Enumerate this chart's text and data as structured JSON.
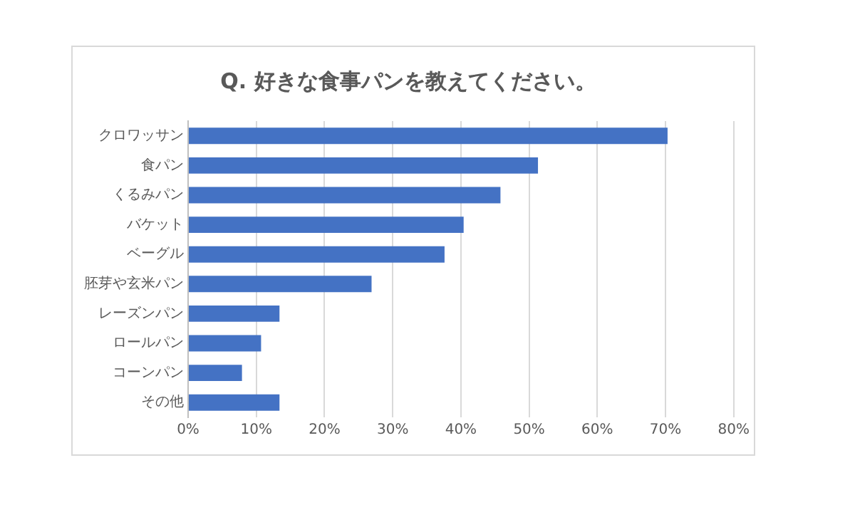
{
  "chart_data": {
    "type": "bar",
    "orientation": "horizontal",
    "title": "Q. 好きな食事パンを教えてください。",
    "categories": [
      "クロワッサン",
      "食パン",
      "くるみパン",
      "バケット",
      "ベーグル",
      "胚芽や玄米パン",
      "レーズンパン",
      "ロールパン",
      "コーンパン",
      "その他"
    ],
    "values": [
      70.3,
      51.3,
      45.8,
      40.4,
      37.6,
      26.9,
      13.4,
      10.7,
      7.9,
      13.4
    ],
    "color": "#4472c4",
    "xlim": [
      0,
      80
    ],
    "xticks": [
      {
        "value": 0,
        "label": "0%"
      },
      {
        "value": 10,
        "label": "10%"
      },
      {
        "value": 20,
        "label": "20%"
      },
      {
        "value": 30,
        "label": "30%"
      },
      {
        "value": 40,
        "label": "40%"
      },
      {
        "value": 50,
        "label": "50%"
      },
      {
        "value": 60,
        "label": "60%"
      },
      {
        "value": 70,
        "label": "70%"
      },
      {
        "value": 80,
        "label": "80%"
      }
    ],
    "grid": "x",
    "legend": false
  }
}
